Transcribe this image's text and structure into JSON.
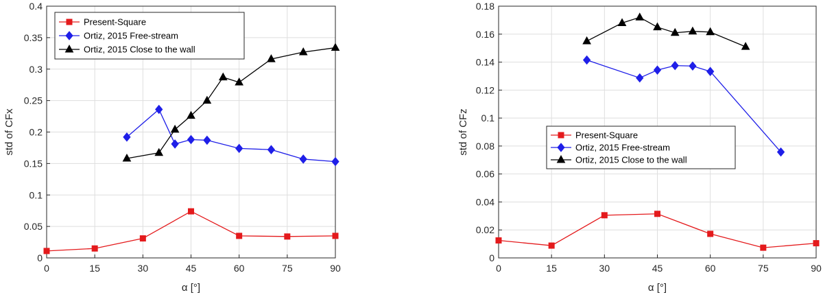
{
  "chart_data": [
    {
      "type": "line",
      "xlabel": "α [°]",
      "ylabel": "std of CFx",
      "xlim": [
        0,
        90
      ],
      "ylim": [
        0,
        0.4
      ],
      "xticks": [
        0,
        15,
        30,
        45,
        60,
        75,
        90
      ],
      "yticks": [
        0,
        0.05,
        0.1,
        0.15,
        0.2,
        0.25,
        0.3,
        0.35,
        0.4
      ],
      "grid": true,
      "legend_position": "top-left",
      "series": [
        {
          "name": "Present-Square",
          "color": "#e41a1c",
          "marker": "square",
          "points": [
            [
              0,
              0.011
            ],
            [
              15,
              0.015
            ],
            [
              30,
              0.031
            ],
            [
              45,
              0.074
            ],
            [
              60,
              0.035
            ],
            [
              75,
              0.034
            ],
            [
              90,
              0.035
            ]
          ]
        },
        {
          "name": "Ortiz, 2015 Free-stream",
          "color": "#1f1fe8",
          "marker": "diamond",
          "points": [
            [
              25,
              0.192
            ],
            [
              35,
              0.236
            ],
            [
              40,
              0.181
            ],
            [
              45,
              0.188
            ],
            [
              50,
              0.187
            ],
            [
              60,
              0.174
            ],
            [
              70,
              0.172
            ],
            [
              80,
              0.157
            ],
            [
              90,
              0.153
            ]
          ]
        },
        {
          "name": "Ortiz, 2015 Close to the wall",
          "color": "#000000",
          "marker": "triangle",
          "points": [
            [
              25,
              0.158
            ],
            [
              35,
              0.167
            ],
            [
              40,
              0.204
            ],
            [
              45,
              0.226
            ],
            [
              50,
              0.25
            ],
            [
              55,
              0.287
            ],
            [
              60,
              0.279
            ],
            [
              70,
              0.316
            ],
            [
              80,
              0.327
            ],
            [
              90,
              0.334
            ]
          ]
        }
      ]
    },
    {
      "type": "line",
      "xlabel": "α [°]",
      "ylabel": "std of CFz",
      "xlim": [
        0,
        90
      ],
      "ylim": [
        0,
        0.18
      ],
      "xticks": [
        0,
        15,
        30,
        45,
        60,
        75,
        90
      ],
      "yticks": [
        0,
        0.02,
        0.04,
        0.06,
        0.08,
        0.1,
        0.12,
        0.14,
        0.16,
        0.18
      ],
      "grid": true,
      "legend_position": "center-left",
      "series": [
        {
          "name": "Present-Square",
          "color": "#e41a1c",
          "marker": "square",
          "points": [
            [
              0,
              0.0125
            ],
            [
              15,
              0.0088
            ],
            [
              30,
              0.0305
            ],
            [
              45,
              0.0315
            ],
            [
              60,
              0.0172
            ],
            [
              75,
              0.0073
            ],
            [
              90,
              0.0105
            ]
          ]
        },
        {
          "name": "Ortiz, 2015 Free-stream",
          "color": "#1f1fe8",
          "marker": "diamond",
          "points": [
            [
              25,
              0.1415
            ],
            [
              40,
              0.1287
            ],
            [
              45,
              0.1343
            ],
            [
              50,
              0.1375
            ],
            [
              55,
              0.1372
            ],
            [
              60,
              0.1333
            ],
            [
              80,
              0.0757
            ]
          ]
        },
        {
          "name": "Ortiz, 2015 Close to the wall",
          "color": "#000000",
          "marker": "triangle",
          "points": [
            [
              25,
              0.155
            ],
            [
              35,
              0.168
            ],
            [
              40,
              0.172
            ],
            [
              45,
              0.165
            ],
            [
              50,
              0.161
            ],
            [
              55,
              0.162
            ],
            [
              60,
              0.1615
            ],
            [
              70,
              0.151
            ]
          ]
        }
      ]
    }
  ]
}
